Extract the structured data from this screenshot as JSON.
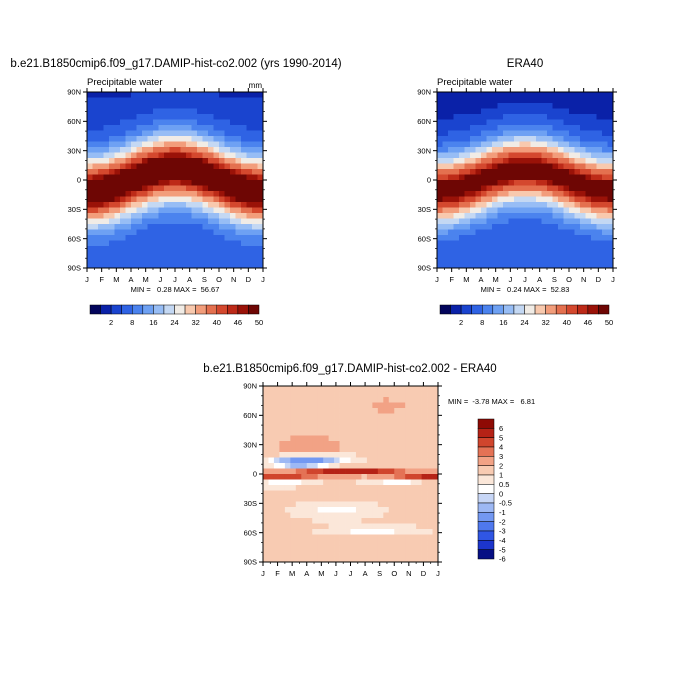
{
  "chart_data": [
    {
      "type": "heatmap",
      "title": "b.e21.B1850cmip6.f09_g17.DAMIP-hist-co2.002 (yrs 1990-2014)",
      "subtitle": "Precipitable water",
      "units": "mm",
      "x_ticks": [
        "J",
        "F",
        "M",
        "A",
        "M",
        "J",
        "J",
        "A",
        "S",
        "O",
        "N",
        "D",
        "J"
      ],
      "y_ticks": [
        "90N",
        "60N",
        "30N",
        "0",
        "30S",
        "60S",
        "90S"
      ],
      "y_values": [
        90,
        60,
        30,
        0,
        -30,
        -60,
        -90
      ],
      "stats_label": "MIN =   0.28 MAX =  56.67",
      "min": 0.28,
      "max": 56.67,
      "colorbar_labels": [
        "2",
        "8",
        "16",
        "24",
        "32",
        "40",
        "46",
        "50"
      ],
      "colorbar_levels": [
        1,
        2,
        4,
        8,
        12,
        16,
        20,
        24,
        28,
        32,
        36,
        40,
        44,
        46,
        48,
        50
      ],
      "field": "model"
    },
    {
      "type": "heatmap",
      "title": "ERA40",
      "subtitle": "Precipitable water",
      "units": "",
      "x_ticks": [
        "J",
        "F",
        "M",
        "A",
        "M",
        "J",
        "J",
        "A",
        "S",
        "O",
        "N",
        "D",
        "J"
      ],
      "y_ticks": [
        "90N",
        "60N",
        "30N",
        "0",
        "30S",
        "60S",
        "90S"
      ],
      "y_values": [
        90,
        60,
        30,
        0,
        -30,
        -60,
        -90
      ],
      "stats_label": "MIN =   0.24 MAX =  52.83",
      "min": 0.24,
      "max": 52.83,
      "colorbar_labels": [
        "2",
        "8",
        "16",
        "24",
        "32",
        "40",
        "46",
        "50"
      ],
      "colorbar_levels": [
        1,
        2,
        4,
        8,
        12,
        16,
        20,
        24,
        28,
        32,
        36,
        40,
        44,
        46,
        48,
        50
      ],
      "field": "obs"
    },
    {
      "type": "heatmap",
      "title": "b.e21.B1850cmip6.f09_g17.DAMIP-hist-co2.002 - ERA40",
      "subtitle": "",
      "units": "",
      "x_ticks": [
        "J",
        "F",
        "M",
        "A",
        "M",
        "J",
        "J",
        "A",
        "S",
        "O",
        "N",
        "D",
        "J"
      ],
      "y_ticks": [
        "90N",
        "60N",
        "30N",
        "0",
        "30S",
        "60S",
        "90S"
      ],
      "y_values": [
        90,
        60,
        30,
        0,
        -30,
        -60,
        -90
      ],
      "stats_label": "MIN =  -3.78 MAX =   6.81",
      "min": -3.78,
      "max": 6.81,
      "colorbar_labels": [
        "6",
        "5",
        "4",
        "3",
        "2",
        "1",
        "0.5",
        "0",
        "-0.5",
        "-1",
        "-2",
        "-3",
        "-4",
        "-5",
        "-6"
      ],
      "colorbar_levels": [
        -6,
        -5,
        -4,
        -3,
        -2,
        -1,
        -0.5,
        0,
        0.5,
        1,
        2,
        3,
        4,
        5,
        6
      ],
      "field": "diff"
    }
  ],
  "palettes": {
    "sequential": [
      "#03055c",
      "#0a21a8",
      "#1a44cf",
      "#2f63e4",
      "#4b83ee",
      "#6ea1f3",
      "#97bdf5",
      "#c4d8f3",
      "#f1ece6",
      "#f8c9ae",
      "#f29d7b",
      "#e4704f",
      "#d4482e",
      "#bd2a18",
      "#9a1208",
      "#6e0604"
    ],
    "diverging": [
      "#060f84",
      "#1c35cc",
      "#3056e4",
      "#4f78ee",
      "#7398f2",
      "#9db8f4",
      "#c7d6f6",
      "#ffffff",
      "#fbe7d9",
      "#f8cbb2",
      "#f2a285",
      "#e47255",
      "#d0452d",
      "#b52216",
      "#8e0a04"
    ]
  }
}
